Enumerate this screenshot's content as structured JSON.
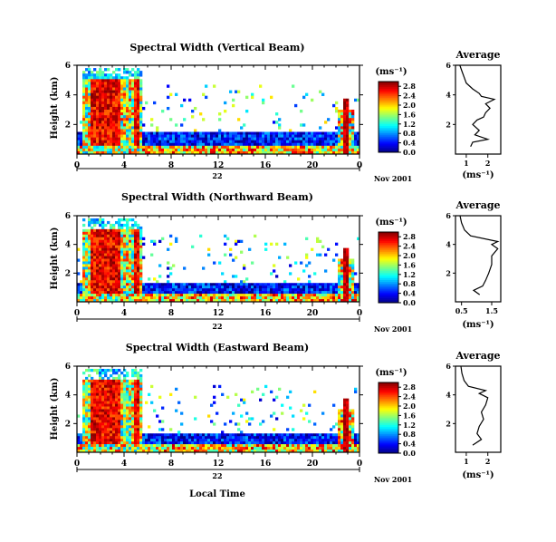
{
  "chart_data": [
    {
      "type": "heatmap",
      "title": "Spectral Width (Vertical Beam)",
      "ylabel": "Height (km)",
      "xlabel": "",
      "x_ticks": [
        "0",
        "4",
        "8",
        "12",
        "16",
        "20",
        "0"
      ],
      "y_ticks": [
        "6",
        "4",
        "2"
      ],
      "xlim": [
        0,
        24
      ],
      "ylim": [
        0,
        6
      ],
      "date_label": "22",
      "month_label": "Nov 2001",
      "colorbar": {
        "unit": "(ms⁻¹)",
        "ticks": [
          "0.0",
          "0.4",
          "0.8",
          "1.2",
          "1.6",
          "2.0",
          "2.4",
          "2.8"
        ],
        "range": [
          0,
          3.0
        ]
      },
      "average": {
        "title": "Average",
        "xlabel": "(ms⁻¹)",
        "x_ticks": [
          "1",
          "2"
        ],
        "xlim": [
          0.5,
          2.6
        ],
        "y_ticks": [
          "6",
          "4",
          "2"
        ],
        "ylim": [
          0,
          6
        ],
        "profile": [
          [
            1.2,
            0.5
          ],
          [
            1.3,
            0.8
          ],
          [
            2.0,
            1.0
          ],
          [
            1.4,
            1.3
          ],
          [
            1.6,
            1.6
          ],
          [
            1.3,
            2.0
          ],
          [
            1.5,
            2.3
          ],
          [
            1.8,
            2.5
          ],
          [
            1.9,
            2.8
          ],
          [
            2.1,
            3.1
          ],
          [
            1.9,
            3.4
          ],
          [
            2.3,
            3.7
          ],
          [
            1.7,
            3.9
          ],
          [
            1.6,
            4.1
          ],
          [
            1.3,
            4.4
          ],
          [
            1.0,
            4.8
          ],
          [
            0.9,
            5.2
          ],
          [
            0.8,
            5.6
          ],
          [
            0.7,
            6.0
          ]
        ]
      }
    },
    {
      "type": "heatmap",
      "title": "Spectral Width (Northward Beam)",
      "ylabel": "Height (km)",
      "xlabel": "",
      "x_ticks": [
        "0",
        "4",
        "8",
        "12",
        "16",
        "20",
        "0"
      ],
      "y_ticks": [
        "6",
        "4",
        "2"
      ],
      "xlim": [
        0,
        24
      ],
      "ylim": [
        0,
        6
      ],
      "date_label": "22",
      "month_label": "Nov 2001",
      "colorbar": {
        "unit": "(ms⁻¹)",
        "ticks": [
          "0.0",
          "0.4",
          "0.8",
          "1.2",
          "1.6",
          "2.0",
          "2.4",
          "2.8"
        ],
        "range": [
          0,
          3.0
        ]
      },
      "average": {
        "title": "Average",
        "xlabel": "(ms⁻¹)",
        "x_ticks": [
          "0.5",
          "1.5"
        ],
        "xlim": [
          0.3,
          1.8
        ],
        "y_ticks": [
          "6",
          "4",
          "2"
        ],
        "ylim": [
          0,
          6
        ],
        "profile": [
          [
            1.1,
            0.5
          ],
          [
            0.9,
            0.8
          ],
          [
            1.2,
            1.1
          ],
          [
            1.3,
            1.5
          ],
          [
            1.4,
            2.0
          ],
          [
            1.5,
            2.6
          ],
          [
            1.5,
            3.2
          ],
          [
            1.7,
            3.7
          ],
          [
            1.5,
            4.0
          ],
          [
            1.7,
            4.2
          ],
          [
            0.8,
            4.6
          ],
          [
            0.6,
            5.0
          ],
          [
            0.5,
            5.5
          ],
          [
            0.45,
            6.0
          ]
        ]
      }
    },
    {
      "type": "heatmap",
      "title": "Spectral Width (Eastward Beam)",
      "ylabel": "Height (km)",
      "xlabel": "Local Time",
      "x_ticks": [
        "0",
        "4",
        "8",
        "12",
        "16",
        "20",
        "0"
      ],
      "y_ticks": [
        "6",
        "4",
        "2"
      ],
      "xlim": [
        0,
        24
      ],
      "ylim": [
        0,
        6
      ],
      "date_label": "22",
      "month_label": "Nov 2001",
      "colorbar": {
        "unit": "(ms⁻¹)",
        "ticks": [
          "0.0",
          "0.4",
          "0.8",
          "1.2",
          "1.6",
          "2.0",
          "2.4",
          "2.8"
        ],
        "range": [
          0,
          3.0
        ]
      },
      "average": {
        "title": "Average",
        "xlabel": "(ms⁻¹)",
        "x_ticks": [
          "1",
          "2"
        ],
        "xlim": [
          0.5,
          2.6
        ],
        "y_ticks": [
          "6",
          "4",
          "2"
        ],
        "ylim": [
          0,
          6
        ],
        "profile": [
          [
            1.3,
            0.5
          ],
          [
            1.7,
            0.9
          ],
          [
            1.5,
            1.3
          ],
          [
            1.6,
            1.8
          ],
          [
            1.8,
            2.3
          ],
          [
            1.7,
            2.8
          ],
          [
            1.9,
            3.3
          ],
          [
            2.0,
            3.8
          ],
          [
            1.6,
            4.1
          ],
          [
            1.9,
            4.3
          ],
          [
            1.1,
            4.6
          ],
          [
            0.9,
            5.0
          ],
          [
            0.8,
            5.5
          ],
          [
            0.75,
            6.0
          ]
        ]
      }
    }
  ]
}
